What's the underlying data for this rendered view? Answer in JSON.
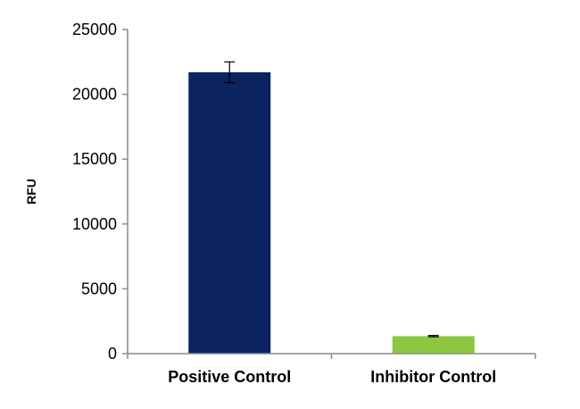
{
  "chart_data": {
    "type": "bar",
    "categories": [
      "Positive Control",
      "Inhibitor Control"
    ],
    "values": [
      21700,
      1350
    ],
    "errors": [
      800,
      50
    ],
    "colors": [
      "#0b2461",
      "#8cc63f"
    ],
    "title": "",
    "xlabel": "",
    "ylabel": "RFU",
    "ylim": [
      0,
      25000
    ],
    "yticks": [
      0,
      5000,
      10000,
      15000,
      20000,
      25000
    ],
    "grid": false,
    "legend": "none"
  }
}
